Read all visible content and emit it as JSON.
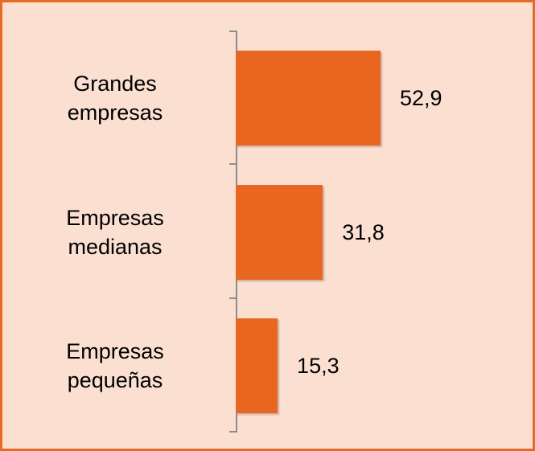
{
  "chart_data": {
    "type": "bar",
    "orientation": "horizontal",
    "categories": [
      "Grandes empresas",
      "Empresas medianas",
      "Empresas pequeñas"
    ],
    "values": [
      52.9,
      31.8,
      15.3
    ],
    "value_labels": [
      "52,9",
      "31,8",
      "15,3"
    ],
    "color": "#e8661f"
  }
}
